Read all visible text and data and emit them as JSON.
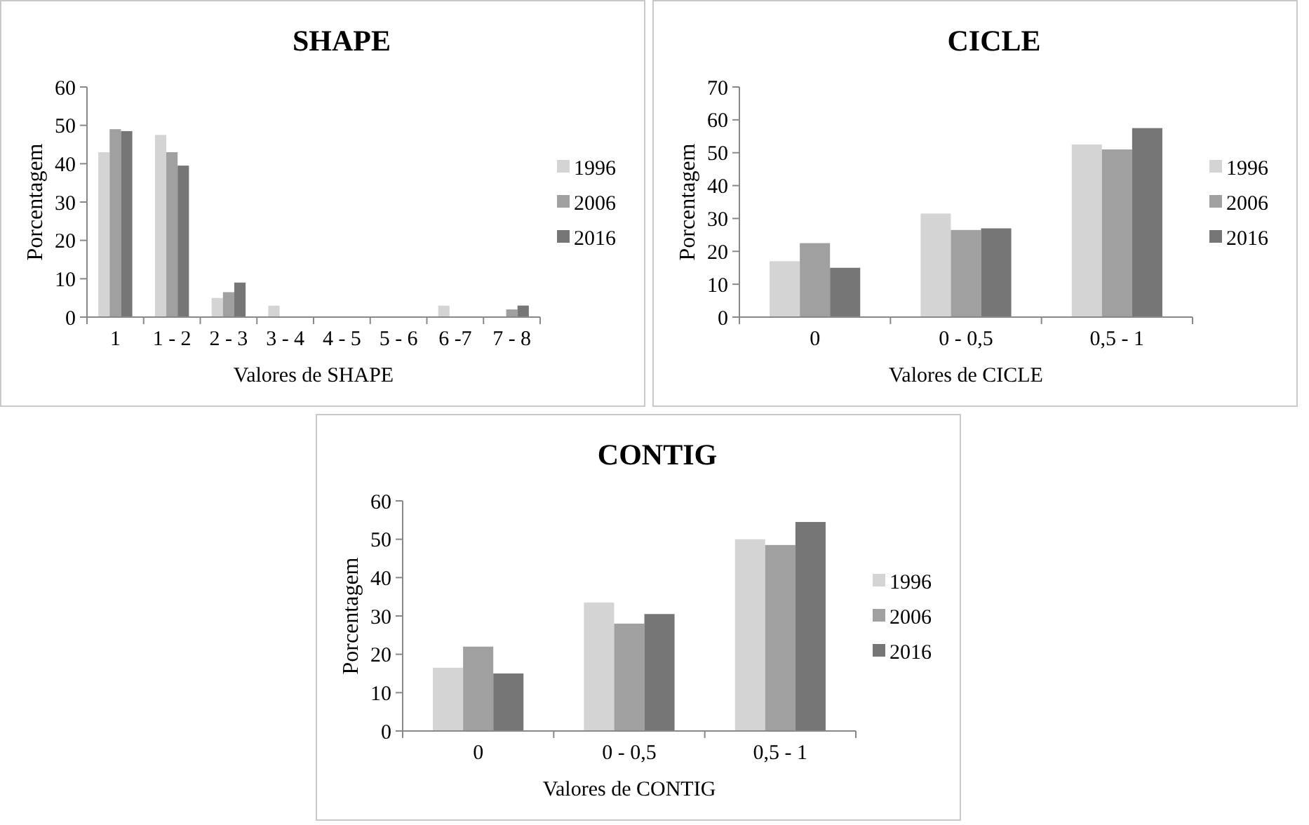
{
  "chart_data": [
    {
      "type": "bar",
      "title": "SHAPE",
      "xlabel": "Valores de SHAPE",
      "ylabel": "Porcentagem",
      "categories": [
        "1",
        "1 - 2",
        "2 - 3",
        "3 - 4",
        "4 - 5",
        "5 - 6",
        "6 -7",
        "7 - 8"
      ],
      "ylim": [
        0,
        60
      ],
      "yticks": [
        0,
        10,
        20,
        30,
        40,
        50,
        60
      ],
      "legend": "right",
      "grid": false,
      "series": [
        {
          "name": "1996",
          "color": "#d4d4d4",
          "values": [
            43,
            47.5,
            5,
            3,
            0,
            0,
            3,
            0
          ]
        },
        {
          "name": "2006",
          "color": "#a0a0a0",
          "values": [
            49,
            43,
            6.5,
            0,
            0,
            0,
            0,
            2
          ]
        },
        {
          "name": "2016",
          "color": "#767676",
          "values": [
            48.5,
            39.5,
            9,
            0,
            0,
            0,
            0,
            3
          ]
        }
      ]
    },
    {
      "type": "bar",
      "title": "CICLE",
      "xlabel": "Valores de CICLE",
      "ylabel": "Porcentagem",
      "categories": [
        "0",
        "0 - 0,5",
        "0,5 - 1"
      ],
      "ylim": [
        0,
        70
      ],
      "yticks": [
        0,
        10,
        20,
        30,
        40,
        50,
        60,
        70
      ],
      "legend": "right",
      "grid": false,
      "series": [
        {
          "name": "1996",
          "color": "#d4d4d4",
          "values": [
            17,
            31.5,
            52.5
          ]
        },
        {
          "name": "2006",
          "color": "#a0a0a0",
          "values": [
            22.5,
            26.5,
            51
          ]
        },
        {
          "name": "2016",
          "color": "#767676",
          "values": [
            15,
            27,
            57.5
          ]
        }
      ]
    },
    {
      "type": "bar",
      "title": "CONTIG",
      "xlabel": "Valores de CONTIG",
      "ylabel": "Porcentagem",
      "categories": [
        "0",
        "0 - 0,5",
        "0,5 - 1"
      ],
      "ylim": [
        0,
        60
      ],
      "yticks": [
        0,
        10,
        20,
        30,
        40,
        50,
        60
      ],
      "legend": "right",
      "grid": false,
      "series": [
        {
          "name": "1996",
          "color": "#d4d4d4",
          "values": [
            16.5,
            33.5,
            50
          ]
        },
        {
          "name": "2006",
          "color": "#a0a0a0",
          "values": [
            22,
            28,
            48.5
          ]
        },
        {
          "name": "2016",
          "color": "#767676",
          "values": [
            15,
            30.5,
            54.5
          ]
        }
      ]
    }
  ]
}
